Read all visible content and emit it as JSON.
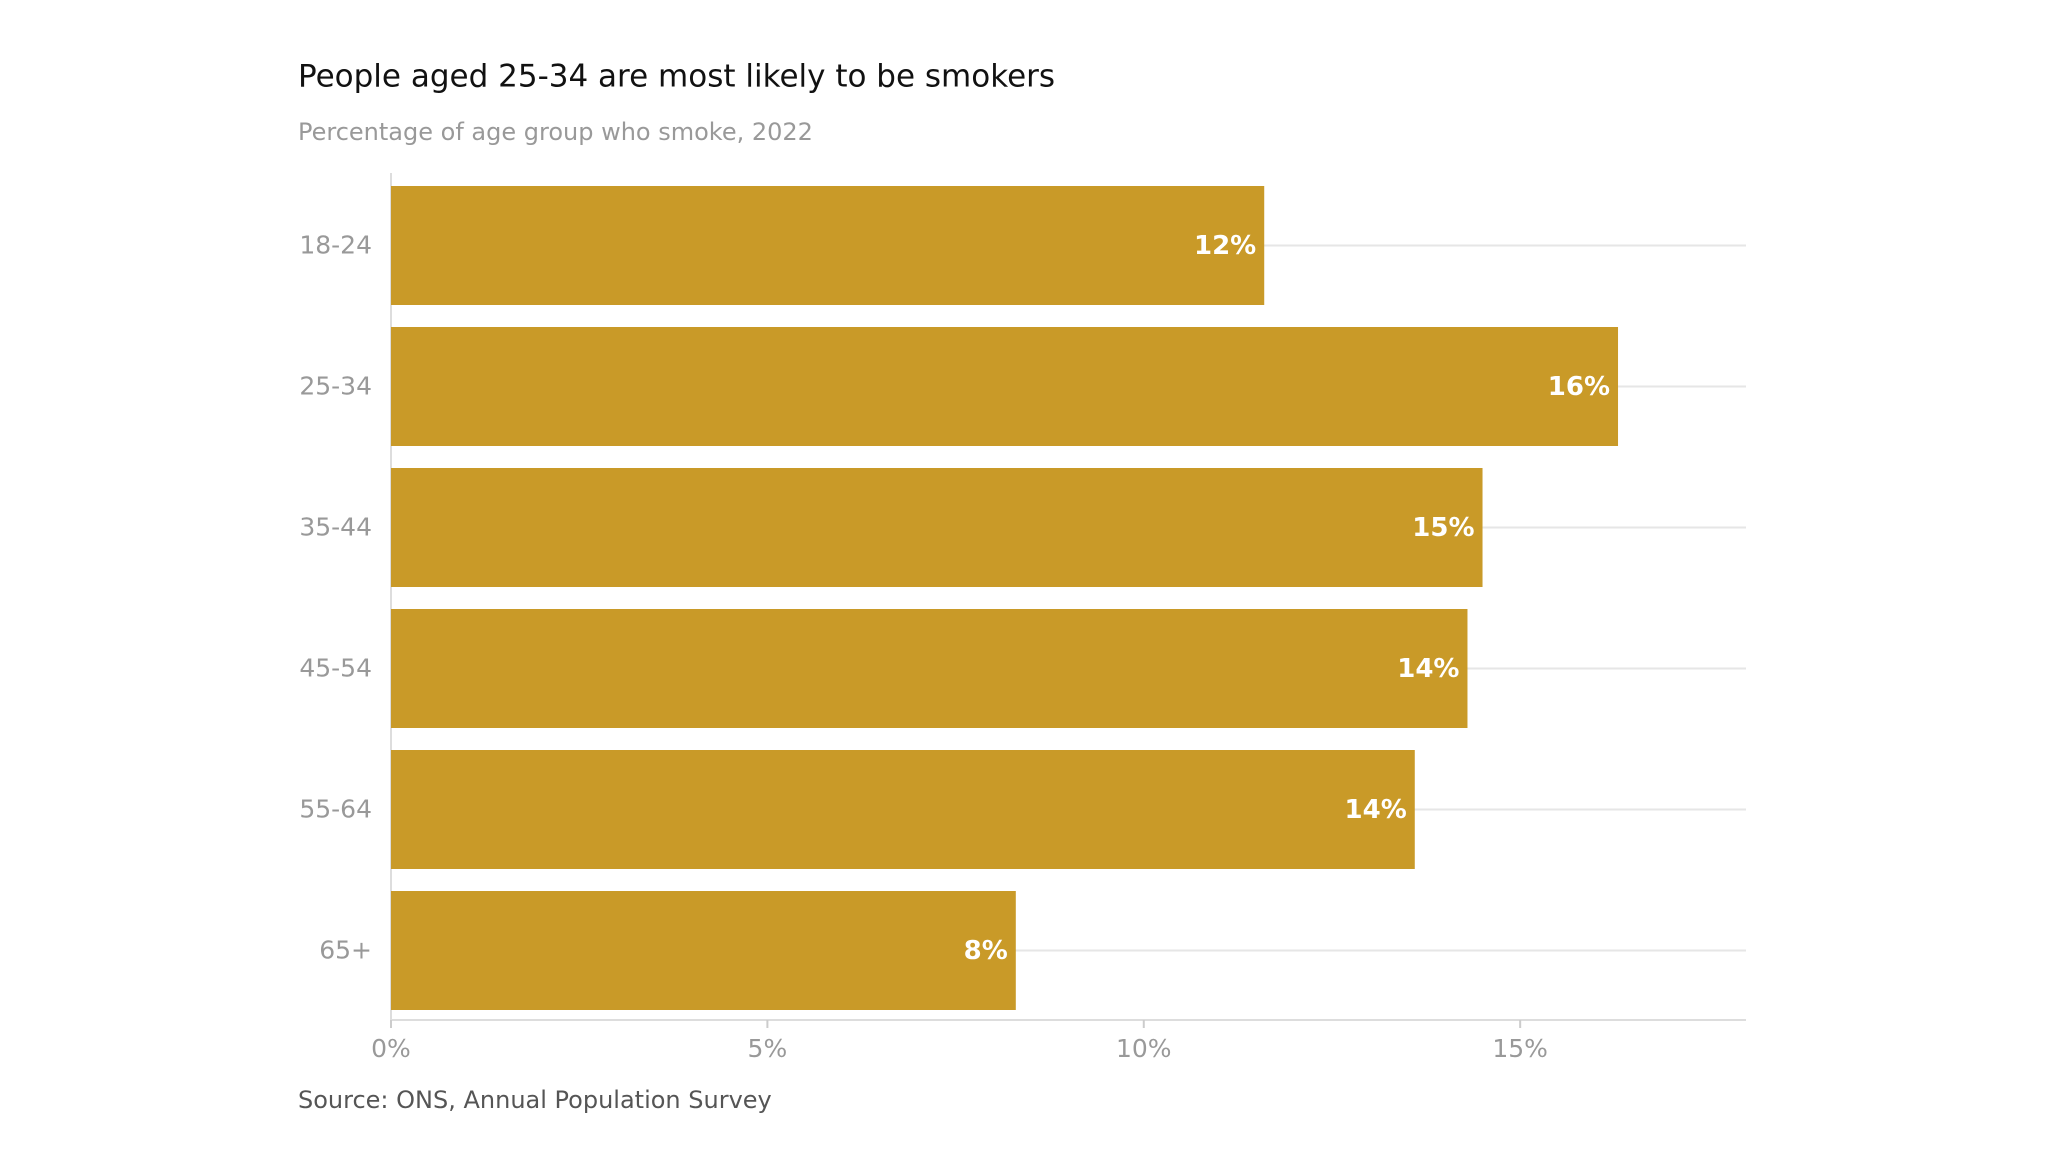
{
  "chart_data": {
    "type": "bar",
    "orientation": "horizontal",
    "title": "People aged 25-34 are most likely to be smokers",
    "subtitle": "Percentage of age group who smoke, 2022",
    "source": "Source: ONS, Annual Population Survey",
    "categories": [
      "18-24",
      "25-34",
      "35-44",
      "45-54",
      "55-64",
      "65+"
    ],
    "values": [
      11.6,
      16.3,
      14.5,
      14.3,
      13.6,
      8.3
    ],
    "value_labels": [
      "12%",
      "16%",
      "15%",
      "14%",
      "14%",
      "8%"
    ],
    "color": "#c99a28",
    "xlim": [
      0,
      18
    ],
    "xticks": [
      {
        "value": 0,
        "label": "0%"
      },
      {
        "value": 5,
        "label": "5%"
      },
      {
        "value": 10,
        "label": "10%"
      },
      {
        "value": 15,
        "label": "15%"
      }
    ]
  }
}
